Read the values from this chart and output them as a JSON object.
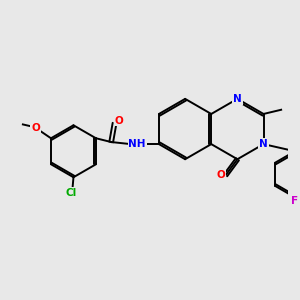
{
  "background_color": "#e8e8e8",
  "bond_color": "#000000",
  "bond_width": 1.4,
  "atom_colors": {
    "O": "#ff0000",
    "N": "#0000ff",
    "Cl": "#00aa00",
    "F": "#cc00cc",
    "C": "#000000",
    "H": "#000000"
  },
  "font_size": 7.5
}
